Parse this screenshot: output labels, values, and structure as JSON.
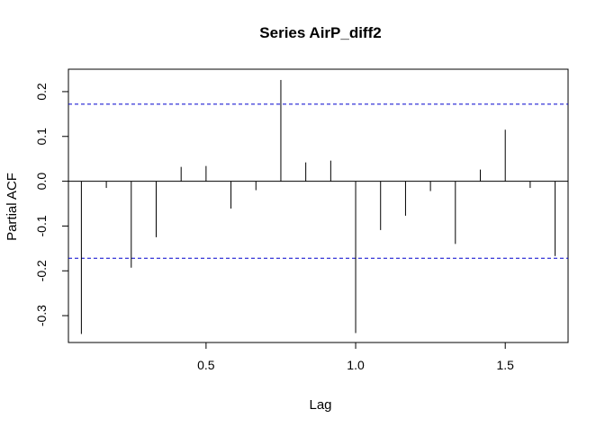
{
  "chart_data": {
    "type": "bar",
    "subtype": "pacf-spikes",
    "title": "Series  AirP_diff2",
    "xlabel": "Lag",
    "ylabel": "Partial ACF",
    "xlim": [
      0.04,
      1.71
    ],
    "ylim": [
      -0.36,
      0.25
    ],
    "x_ticks": [
      0.5,
      1.0,
      1.5
    ],
    "x_tick_labels": [
      "0.5",
      "1.0",
      "1.5"
    ],
    "y_ticks": [
      -0.3,
      -0.2,
      -0.1,
      0.0,
      0.1,
      0.2
    ],
    "y_tick_labels": [
      "-0.3",
      "-0.2",
      "-0.1",
      "0.0",
      "0.1",
      "0.2"
    ],
    "confidence_bound": 0.172,
    "confidence_line_color": "#0000cd",
    "spike_color": "#000000",
    "zero_line": true,
    "grid": false,
    "lags": [
      0.0833,
      0.1667,
      0.25,
      0.3333,
      0.4167,
      0.5,
      0.5833,
      0.6667,
      0.75,
      0.8333,
      0.9167,
      1.0,
      1.0833,
      1.1667,
      1.25,
      1.3333,
      1.4167,
      1.5,
      1.5833,
      1.6667
    ],
    "values": [
      -0.341,
      -0.015,
      -0.193,
      -0.125,
      0.032,
      0.034,
      -0.061,
      -0.02,
      0.226,
      0.042,
      0.046,
      -0.339,
      -0.109,
      -0.077,
      -0.022,
      -0.14,
      0.026,
      0.115,
      -0.015,
      -0.167
    ]
  }
}
